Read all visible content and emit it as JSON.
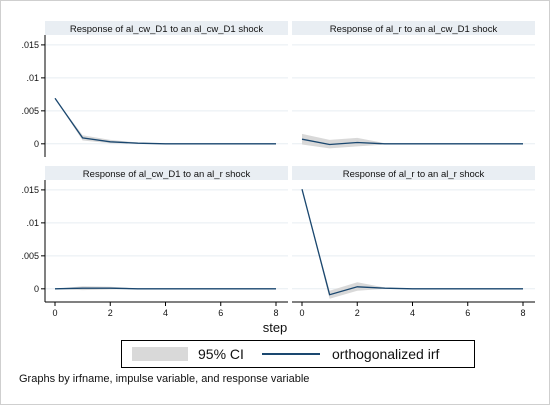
{
  "chart_data": {
    "type": "line",
    "layout": "2x2 panel grid",
    "xlabel": "step",
    "xlim": [
      0,
      8
    ],
    "x_ticks": [
      0,
      2,
      4,
      6,
      8
    ],
    "ylim": [
      -0.002,
      0.0165
    ],
    "y_ticks": [
      0,
      0.005,
      0.01,
      0.015
    ],
    "y_tick_labels": [
      "0",
      ".005",
      ".01",
      ".015"
    ],
    "legend_placement": "bottom",
    "legend": [
      {
        "label": "95% CI",
        "kind": "band",
        "color": "#d9d9d9"
      },
      {
        "label": "orthogonalized irf",
        "kind": "line",
        "color": "#1a476f"
      }
    ],
    "note": "Graphs by irfname, impulse variable, and response variable",
    "colors": {
      "irf_line": "#1a476f",
      "ci_band": "#d9d9d9",
      "panel_header": "#e9eef3",
      "grid": "#e7edf2"
    },
    "panels": [
      {
        "title": "Response of al_cw_D1 to an al_cw_D1 shock",
        "x": [
          0,
          1,
          2,
          3,
          4,
          5,
          6,
          7,
          8
        ],
        "irf": [
          0.0069,
          0.0009,
          0.0003,
          0.0001,
          0,
          0,
          0,
          0,
          0
        ],
        "ci_lower": [
          0.0069,
          0.0005,
          0.0001,
          0,
          0,
          0,
          0,
          0,
          0
        ],
        "ci_upper": [
          0.0069,
          0.0013,
          0.0006,
          0.0002,
          5e-05,
          0,
          0,
          0,
          0
        ]
      },
      {
        "title": "Response of al_r to an al_cw_D1 shock",
        "x": [
          0,
          1,
          2,
          3,
          4,
          5,
          6,
          7,
          8
        ],
        "irf": [
          0.0007,
          -0.0001,
          0.0002,
          0,
          0,
          0,
          0,
          0,
          0
        ],
        "ci_lower": [
          -0.0001,
          -0.0007,
          -0.0004,
          -0.0001,
          0,
          0,
          0,
          0,
          0
        ],
        "ci_upper": [
          0.0015,
          0.0006,
          0.0009,
          0.0001,
          0,
          0,
          0,
          0,
          0
        ]
      },
      {
        "title": "Response of al_cw_D1 to an al_r shock",
        "x": [
          0,
          1,
          2,
          3,
          4,
          5,
          6,
          7,
          8
        ],
        "irf": [
          0,
          0.0001,
          0.0001,
          0,
          0,
          0,
          0,
          0,
          0
        ],
        "ci_lower": [
          0,
          -0.0002,
          -0.0001,
          0,
          0,
          0,
          0,
          0,
          0
        ],
        "ci_upper": [
          0,
          0.0004,
          0.0003,
          5e-05,
          0,
          0,
          0,
          0,
          0
        ]
      },
      {
        "title": "Response of al_r to an al_r shock",
        "x": [
          0,
          1,
          2,
          3,
          4,
          5,
          6,
          7,
          8
        ],
        "irf": [
          0.0151,
          -0.0009,
          0.0003,
          0.0001,
          0,
          0,
          0,
          0,
          0
        ],
        "ci_lower": [
          0.0151,
          -0.0015,
          -0.0003,
          0,
          0,
          0,
          0,
          0,
          0
        ],
        "ci_upper": [
          0.0151,
          -0.0003,
          0.001,
          0.0002,
          5e-05,
          0,
          0,
          0,
          0
        ]
      }
    ]
  }
}
